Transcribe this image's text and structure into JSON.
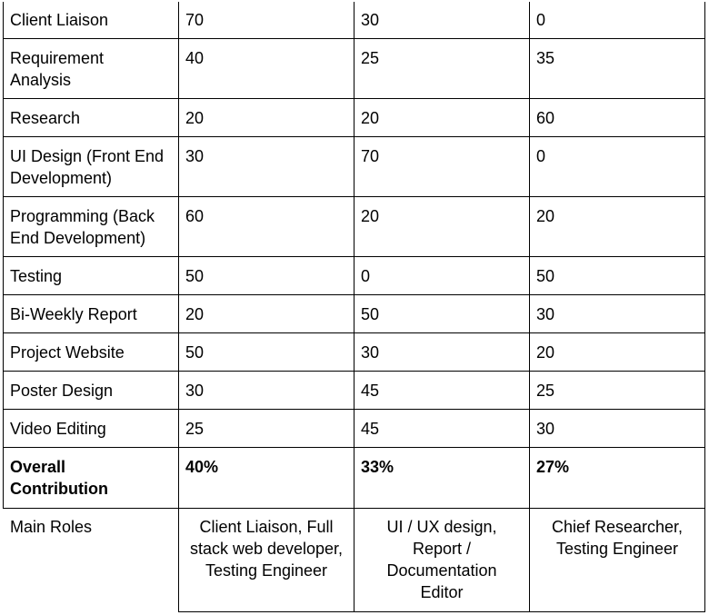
{
  "table": {
    "rows": [
      {
        "task": "Client Liaison",
        "m1": "70",
        "m2": "30",
        "m3": "0"
      },
      {
        "task": "Requirement Analysis",
        "m1": "40",
        "m2": "25",
        "m3": "35"
      },
      {
        "task": "Research",
        "m1": "20",
        "m2": "20",
        "m3": "60"
      },
      {
        "task": "UI Design (Front End Development)",
        "m1": "30",
        "m2": "70",
        "m3": "0"
      },
      {
        "task": "Programming (Back End Development)",
        "m1": "60",
        "m2": "20",
        "m3": "20"
      },
      {
        "task": "Testing",
        "m1": "50",
        "m2": "0",
        "m3": "50"
      },
      {
        "task": "Bi-Weekly Report",
        "m1": "20",
        "m2": "50",
        "m3": "30"
      },
      {
        "task": "Project Website",
        "m1": "50",
        "m2": "30",
        "m3": "20"
      },
      {
        "task": "Poster Design",
        "m1": "30",
        "m2": "45",
        "m3": "25"
      },
      {
        "task": "Video Editing",
        "m1": "25",
        "m2": "45",
        "m3": "30"
      }
    ],
    "overall": {
      "label": "Overall Contribution",
      "m1": "40%",
      "m2": "33%",
      "m3": "27%"
    },
    "roles": {
      "label": "Main Roles",
      "m1": "Client Liaison, Full stack web developer, Testing Engineer",
      "m2": "UI / UX design, Report / Documentation Editor",
      "m3": "Chief Researcher, Testing Engineer"
    }
  }
}
